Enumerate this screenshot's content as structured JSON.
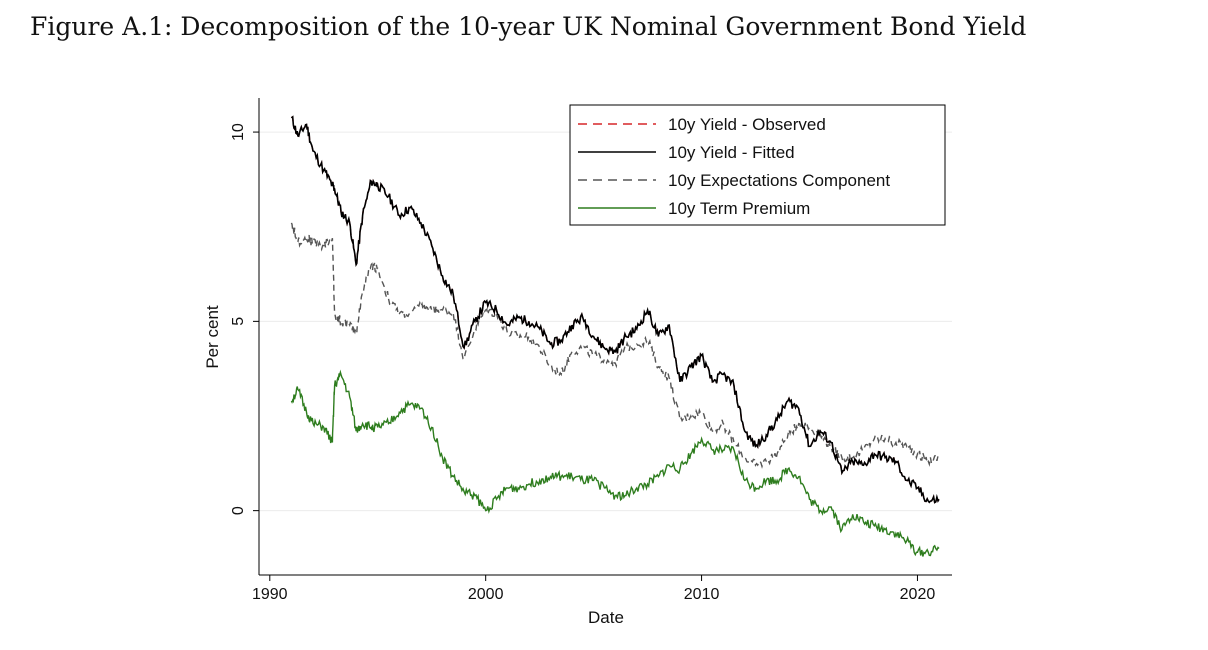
{
  "figure_title": "Figure A.1: Decomposition of the 10-year UK Nominal Government Bond Yield",
  "chart_data": {
    "type": "line",
    "title": "",
    "xlabel": "Date",
    "ylabel": "Per cent",
    "xlim": [
      1989.5,
      2021.6
    ],
    "ylim": [
      -1.7,
      10.9
    ],
    "xticks": [
      1990,
      2000,
      2010,
      2020
    ],
    "yticks": [
      0,
      5,
      10
    ],
    "grid": "horizontal",
    "legend_position": "top-right",
    "x": [
      1991.0,
      1991.3,
      1991.7,
      1992.0,
      1992.5,
      1992.9,
      1993.0,
      1993.3,
      1993.7,
      1994.0,
      1994.3,
      1994.7,
      1995.0,
      1995.5,
      1996.0,
      1996.5,
      1997.0,
      1997.5,
      1998.0,
      1998.5,
      1999.0,
      1999.5,
      2000.0,
      2000.5,
      2001.0,
      2001.5,
      2002.0,
      2002.5,
      2003.0,
      2003.5,
      2004.0,
      2004.5,
      2005.0,
      2005.5,
      2006.0,
      2006.5,
      2007.0,
      2007.5,
      2008.0,
      2008.5,
      2009.0,
      2009.5,
      2010.0,
      2010.5,
      2011.0,
      2011.5,
      2012.0,
      2012.5,
      2013.0,
      2013.5,
      2014.0,
      2014.5,
      2015.0,
      2015.5,
      2016.0,
      2016.5,
      2017.0,
      2017.5,
      2018.0,
      2018.5,
      2019.0,
      2019.5,
      2020.0,
      2020.5,
      2021.0
    ],
    "series": [
      {
        "name": "10y Yield - Observed",
        "color": "#d62728",
        "dash": "dashed",
        "values": [
          10.4,
          9.9,
          10.2,
          9.5,
          9.0,
          8.6,
          8.5,
          7.9,
          7.6,
          6.5,
          7.8,
          8.7,
          8.6,
          8.3,
          7.8,
          8.0,
          7.6,
          7.0,
          6.2,
          5.7,
          4.3,
          5.0,
          5.5,
          5.3,
          4.9,
          5.1,
          5.0,
          4.8,
          4.4,
          4.5,
          4.9,
          5.1,
          4.6,
          4.3,
          4.2,
          4.6,
          4.8,
          5.3,
          4.6,
          4.9,
          3.4,
          3.8,
          4.1,
          3.4,
          3.6,
          3.3,
          2.1,
          1.7,
          2.0,
          2.4,
          2.9,
          2.7,
          1.7,
          2.1,
          1.8,
          1.0,
          1.3,
          1.2,
          1.5,
          1.4,
          1.3,
          0.8,
          0.6,
          0.25,
          0.3
        ]
      },
      {
        "name": "10y Yield - Fitted",
        "color": "#000000",
        "dash": "solid",
        "values": [
          10.4,
          9.9,
          10.2,
          9.5,
          9.0,
          8.6,
          8.5,
          7.9,
          7.6,
          6.5,
          7.8,
          8.7,
          8.6,
          8.3,
          7.8,
          8.0,
          7.6,
          7.0,
          6.2,
          5.7,
          4.3,
          5.0,
          5.5,
          5.3,
          4.9,
          5.1,
          5.0,
          4.8,
          4.4,
          4.5,
          4.9,
          5.1,
          4.6,
          4.3,
          4.2,
          4.6,
          4.8,
          5.3,
          4.6,
          4.9,
          3.4,
          3.8,
          4.1,
          3.4,
          3.6,
          3.3,
          2.1,
          1.7,
          2.0,
          2.4,
          2.9,
          2.7,
          1.7,
          2.1,
          1.8,
          1.0,
          1.3,
          1.2,
          1.5,
          1.4,
          1.3,
          0.8,
          0.6,
          0.25,
          0.3
        ]
      },
      {
        "name": "10y Expectations Component",
        "color": "#555555",
        "dash": "dashed",
        "values": [
          7.6,
          7.1,
          7.2,
          7.1,
          7.0,
          7.2,
          5.2,
          5.0,
          4.9,
          4.7,
          5.8,
          6.5,
          6.4,
          5.6,
          5.2,
          5.2,
          5.4,
          5.3,
          5.3,
          5.2,
          4.0,
          4.8,
          5.3,
          5.2,
          4.7,
          4.6,
          4.6,
          4.3,
          3.8,
          3.6,
          4.2,
          4.3,
          4.1,
          4.0,
          3.9,
          4.3,
          4.4,
          4.5,
          3.8,
          3.5,
          2.4,
          2.5,
          2.6,
          2.1,
          2.3,
          1.8,
          1.4,
          1.2,
          1.3,
          1.5,
          2.0,
          2.3,
          2.2,
          2.0,
          1.7,
          1.4,
          1.4,
          1.6,
          1.9,
          1.9,
          1.8,
          1.7,
          1.5,
          1.3,
          1.4
        ]
      },
      {
        "name": "10y Term Premium",
        "color": "#2e7d1e",
        "dash": "solid",
        "values": [
          2.9,
          3.2,
          2.6,
          2.3,
          2.2,
          1.8,
          3.3,
          3.6,
          3.0,
          2.1,
          2.3,
          2.2,
          2.2,
          2.3,
          2.6,
          2.8,
          2.7,
          2.2,
          1.4,
          0.9,
          0.5,
          0.4,
          0.0,
          0.3,
          0.6,
          0.6,
          0.7,
          0.8,
          0.9,
          0.9,
          0.9,
          0.8,
          0.8,
          0.6,
          0.4,
          0.4,
          0.6,
          0.7,
          0.9,
          1.2,
          1.1,
          1.5,
          1.9,
          1.6,
          1.6,
          1.6,
          0.8,
          0.6,
          0.8,
          0.8,
          1.1,
          0.9,
          0.3,
          0.0,
          0.1,
          -0.5,
          -0.1,
          -0.3,
          -0.4,
          -0.5,
          -0.6,
          -0.8,
          -1.1,
          -1.1,
          -1.0
        ]
      }
    ]
  }
}
